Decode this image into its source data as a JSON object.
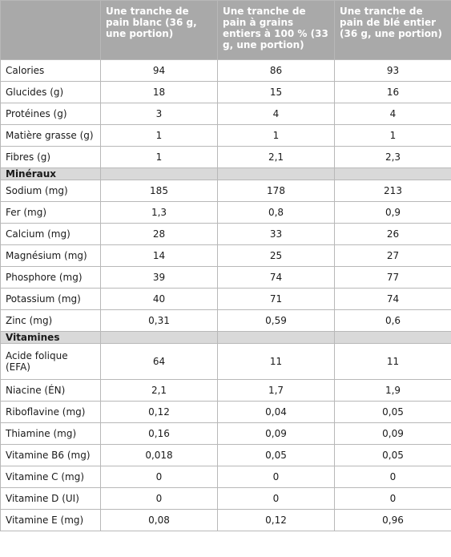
{
  "header": {
    "columns": [
      "Une tranche de pain blanc (36 g, une portion)",
      "Une tranche de pain à grains entiers à 100 % (33 g, une portion)",
      "Une tranche de pain de blé entier (36 g, une portion)"
    ]
  },
  "rows": [
    {
      "type": "data",
      "label": "Calories",
      "values": [
        "94",
        "86",
        "93"
      ]
    },
    {
      "type": "data",
      "label": "Glucides (g)",
      "values": [
        "18",
        "15",
        "16"
      ]
    },
    {
      "type": "data",
      "label": "Protéines (g)",
      "values": [
        "3",
        "4",
        "4"
      ]
    },
    {
      "type": "data",
      "label": "Matière grasse (g)",
      "values": [
        "1",
        "1",
        "1"
      ]
    },
    {
      "type": "data",
      "label": "Fibres (g)",
      "values": [
        "1",
        "2,1",
        "2,3"
      ]
    },
    {
      "type": "section",
      "label": "Minéraux"
    },
    {
      "type": "data",
      "label": "Sodium (mg)",
      "values": [
        "185",
        "178",
        "213"
      ]
    },
    {
      "type": "data",
      "label": "Fer (mg)",
      "values": [
        "1,3",
        "0,8",
        "0,9"
      ]
    },
    {
      "type": "data",
      "label": "Calcium (mg)",
      "values": [
        "28",
        "33",
        "26"
      ]
    },
    {
      "type": "data",
      "label": "Magnésium (mg)",
      "values": [
        "14",
        "25",
        "27"
      ]
    },
    {
      "type": "data",
      "label": "Phosphore (mg)",
      "values": [
        "39",
        "74",
        "77"
      ]
    },
    {
      "type": "data",
      "label": "Potassium (mg)",
      "values": [
        "40",
        "71",
        "74"
      ]
    },
    {
      "type": "data",
      "label": "Zinc (mg)",
      "values": [
        "0,31",
        "0,59",
        "0,6"
      ]
    },
    {
      "type": "section",
      "label": "Vitamines"
    },
    {
      "type": "data",
      "label": "Acide folique (EFA)",
      "values": [
        "64",
        "11",
        "11"
      ],
      "tall": true
    },
    {
      "type": "data",
      "label": "Niacine (ÉN)",
      "values": [
        "2,1",
        "1,7",
        "1,9"
      ]
    },
    {
      "type": "data",
      "label": "Riboflavine (mg)",
      "values": [
        "0,12",
        "0,04",
        "0,05"
      ]
    },
    {
      "type": "data",
      "label": "Thiamine (mg)",
      "values": [
        "0,16",
        "0,09",
        "0,09"
      ]
    },
    {
      "type": "data",
      "label": "Vitamine B6 (mg)",
      "values": [
        "0,018",
        "0,05",
        "0,05"
      ]
    },
    {
      "type": "data",
      "label": "Vitamine C (mg)",
      "values": [
        "0",
        "0",
        "0"
      ]
    },
    {
      "type": "data",
      "label": "Vitamine D (UI)",
      "values": [
        "0",
        "0",
        "0"
      ]
    },
    {
      "type": "data",
      "label": "Vitamine E (mg)",
      "values": [
        "0,08",
        "0,12",
        "0,96"
      ]
    }
  ]
}
